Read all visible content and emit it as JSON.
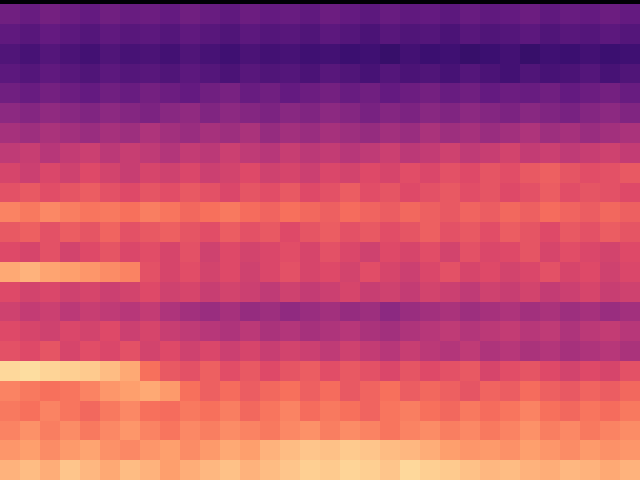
{
  "chart_data": {
    "type": "heatmap",
    "tick_labels": false,
    "zlim": [
      0,
      100
    ],
    "xlim": [
      -0.5,
      31.5
    ],
    "ylim": [
      -0.5,
      23.5
    ],
    "cells": [
      [
        84,
        86,
        83,
        88,
        85,
        82,
        86,
        84,
        80,
        83,
        85,
        87,
        84,
        86,
        88,
        90,
        89,
        91,
        90,
        88,
        92,
        90,
        89,
        87,
        85,
        86,
        84,
        83,
        85,
        84,
        82,
        84
      ],
      [
        78,
        80,
        76,
        79,
        81,
        77,
        75,
        78,
        80,
        76,
        79,
        82,
        80,
        84,
        86,
        88,
        87,
        89,
        88,
        86,
        85,
        83,
        80,
        78,
        79,
        77,
        80,
        78,
        76,
        79,
        77,
        78
      ],
      [
        74,
        77,
        73,
        76,
        72,
        75,
        78,
        74,
        71,
        75,
        73,
        76,
        74,
        72,
        75,
        77,
        73,
        76,
        74,
        71,
        74,
        76,
        73,
        75,
        72,
        74,
        77,
        73,
        75,
        72,
        74,
        76
      ],
      [
        72,
        70,
        74,
        71,
        68,
        72,
        75,
        70,
        69,
        72,
        70,
        73,
        68,
        71,
        74,
        69,
        72,
        70,
        67,
        71,
        73,
        70,
        68,
        72,
        69,
        71,
        74,
        70,
        68,
        71,
        69,
        72
      ],
      [
        74,
        72,
        70,
        71,
        74,
        78,
        80,
        82,
        79,
        70,
        66,
        69,
        65,
        68,
        70,
        66,
        69,
        64,
        67,
        70,
        65,
        68,
        66,
        63,
        67,
        65,
        69,
        66,
        64,
        67,
        65,
        68
      ],
      [
        92,
        93,
        91,
        90,
        89,
        86,
        82,
        70,
        64,
        62,
        66,
        61,
        64,
        60,
        63,
        65,
        61,
        64,
        62,
        59,
        63,
        60,
        62,
        64,
        58,
        61,
        63,
        60,
        57,
        60,
        58,
        62
      ],
      [
        62,
        60,
        63,
        58,
        61,
        59,
        62,
        57,
        60,
        56,
        59,
        55,
        58,
        54,
        57,
        55,
        52,
        56,
        53,
        50,
        54,
        51,
        49,
        52,
        48,
        50,
        47,
        49,
        46,
        48,
        50,
        47
      ],
      [
        60,
        58,
        56,
        59,
        57,
        60,
        55,
        58,
        54,
        52,
        50,
        48,
        51,
        47,
        49,
        46,
        48,
        50,
        47,
        45,
        48,
        50,
        52,
        49,
        51,
        53,
        50,
        52,
        48,
        51,
        53,
        50
      ],
      [
        56,
        53,
        55,
        51,
        54,
        52,
        50,
        53,
        48,
        45,
        43,
        46,
        42,
        44,
        41,
        43,
        45,
        42,
        44,
        40,
        43,
        45,
        47,
        44,
        46,
        48,
        45,
        47,
        44,
        46,
        43,
        45
      ],
      [
        60,
        57,
        59,
        56,
        58,
        55,
        57,
        60,
        56,
        58,
        54,
        57,
        55,
        52,
        56,
        53,
        55,
        58,
        54,
        56,
        53,
        57,
        55,
        52,
        56,
        54,
        57,
        53,
        55,
        58,
        54,
        56
      ],
      [
        82,
        84,
        81,
        80,
        78,
        76,
        74,
        62,
        58,
        61,
        57,
        60,
        56,
        59,
        62,
        58,
        60,
        57,
        61,
        58,
        55,
        59,
        62,
        58,
        60,
        57,
        59,
        62,
        58,
        60,
        56,
        59
      ],
      [
        60,
        58,
        62,
        57,
        60,
        63,
        59,
        61,
        58,
        62,
        56,
        60,
        57,
        59,
        61,
        58,
        62,
        59,
        56,
        60,
        58,
        61,
        57,
        62,
        59,
        60,
        63,
        58,
        61,
        59,
        57,
        60
      ],
      [
        64,
        66,
        62,
        65,
        63,
        67,
        62,
        64,
        66,
        63,
        61,
        65,
        62,
        64,
        60,
        63,
        65,
        62,
        64,
        61,
        63,
        66,
        62,
        64,
        61,
        65,
        63,
        60,
        64,
        62,
        65,
        63
      ],
      [
        74,
        72,
        75,
        73,
        71,
        72,
        70,
        73,
        71,
        68,
        70,
        72,
        69,
        67,
        70,
        68,
        66,
        69,
        67,
        65,
        68,
        66,
        64,
        67,
        65,
        68,
        66,
        69,
        67,
        65,
        68,
        66
      ],
      [
        62,
        64,
        61,
        63,
        65,
        62,
        60,
        63,
        61,
        64,
        62,
        59,
        63,
        61,
        64,
        60,
        62,
        65,
        61,
        63,
        60,
        62,
        64,
        61,
        63,
        60,
        62,
        65,
        61,
        63,
        62,
        60
      ],
      [
        58,
        55,
        59,
        56,
        60,
        57,
        54,
        58,
        56,
        59,
        55,
        57,
        60,
        56,
        58,
        55,
        59,
        57,
        60,
        58,
        61,
        59,
        62,
        60,
        63,
        61,
        64,
        66,
        63,
        61,
        62,
        64
      ],
      [
        52,
        54,
        50,
        53,
        55,
        51,
        54,
        52,
        49,
        53,
        51,
        55,
        52,
        50,
        54,
        51,
        53,
        50,
        52,
        55,
        51,
        53,
        56,
        52,
        54,
        57,
        53,
        55,
        52,
        54,
        56,
        53
      ],
      [
        46,
        44,
        47,
        45,
        43,
        46,
        44,
        48,
        45,
        43,
        46,
        44,
        47,
        42,
        45,
        43,
        46,
        44,
        42,
        45,
        43,
        47,
        44,
        46,
        43,
        45,
        48,
        44,
        46,
        43,
        45,
        47
      ],
      [
        40,
        38,
        41,
        39,
        37,
        40,
        38,
        36,
        39,
        41,
        37,
        40,
        38,
        36,
        39,
        37,
        40,
        38,
        35,
        38,
        36,
        39,
        37,
        40,
        38,
        36,
        39,
        37,
        35,
        38,
        40,
        37
      ],
      [
        33,
        31,
        34,
        32,
        30,
        33,
        31,
        34,
        32,
        30,
        33,
        35,
        31,
        33,
        30,
        32,
        34,
        31,
        33,
        30,
        32,
        34,
        31,
        33,
        30,
        32,
        31,
        33,
        30,
        32,
        34,
        31
      ],
      [
        28,
        26,
        29,
        27,
        25,
        28,
        26,
        27,
        25,
        28,
        26,
        24,
        27,
        25,
        26,
        24,
        27,
        25,
        23,
        26,
        24,
        25,
        23,
        26,
        24,
        22,
        25,
        23,
        24,
        26,
        23,
        25
      ],
      [
        25,
        23,
        26,
        24,
        22,
        25,
        23,
        24,
        22,
        25,
        23,
        21,
        24,
        22,
        23,
        21,
        22,
        20,
        21,
        19,
        22,
        20,
        21,
        19,
        20,
        22,
        19,
        21,
        20,
        22,
        20,
        21
      ],
      [
        29,
        27,
        30,
        28,
        26,
        29,
        27,
        28,
        26,
        29,
        27,
        25,
        28,
        26,
        27,
        25,
        28,
        26,
        24,
        27,
        25,
        26,
        24,
        27,
        25,
        26,
        28,
        25,
        27,
        26,
        28,
        26
      ],
      [
        33,
        31,
        34,
        32,
        30,
        33,
        31,
        32,
        30,
        33,
        31,
        29,
        32,
        30,
        31,
        29,
        32,
        30,
        28,
        31,
        29,
        30,
        28,
        31,
        29,
        30,
        32,
        29,
        31,
        30,
        32,
        30
      ]
    ]
  }
}
